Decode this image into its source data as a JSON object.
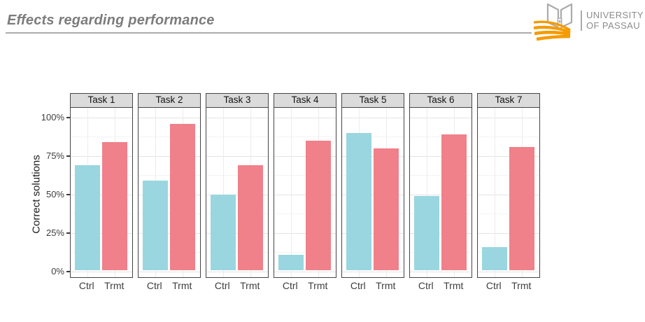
{
  "header": {
    "title": "Effects regarding performance",
    "logo": {
      "line1": "UNIVERSITY",
      "line2": "OF PASSAU",
      "swoosh_color": "#F59B00",
      "book_outline_color": "#ABABAB",
      "text_color": "#8C8C8C"
    }
  },
  "colors": {
    "title_text": "#7C7C7C",
    "title_rule": "#ABABAB",
    "panel_header_fill": "#DBDBDB",
    "panel_border": "#454545",
    "grid_major": "#E4E4E4",
    "grid_minor": "#F3F3F3",
    "axis_text": "#404040"
  },
  "chart_data": {
    "type": "bar",
    "title": "",
    "ylabel": "Correct solutions",
    "xlabel": "",
    "unit": "%",
    "facets": [
      "Task 1",
      "Task 2",
      "Task 3",
      "Task 4",
      "Task 5",
      "Task 6",
      "Task 7"
    ],
    "categories": [
      "Ctrl",
      "Trmt"
    ],
    "series": [
      {
        "name": "Ctrl",
        "color": "#99D6E0",
        "values": [
          68,
          58,
          49,
          10,
          89,
          48,
          15
        ]
      },
      {
        "name": "Trmt",
        "color": "#F08089",
        "values": [
          83,
          95,
          68,
          84,
          79,
          88,
          80
        ]
      }
    ],
    "ylim": [
      0,
      100
    ],
    "yticks": [
      0,
      25,
      50,
      75,
      100
    ],
    "ytick_labels": [
      "0%",
      "25%",
      "50%",
      "75%",
      "100%"
    ],
    "grid": "horizontal major+minor, vertical major at category centers",
    "legend_position": "none"
  }
}
